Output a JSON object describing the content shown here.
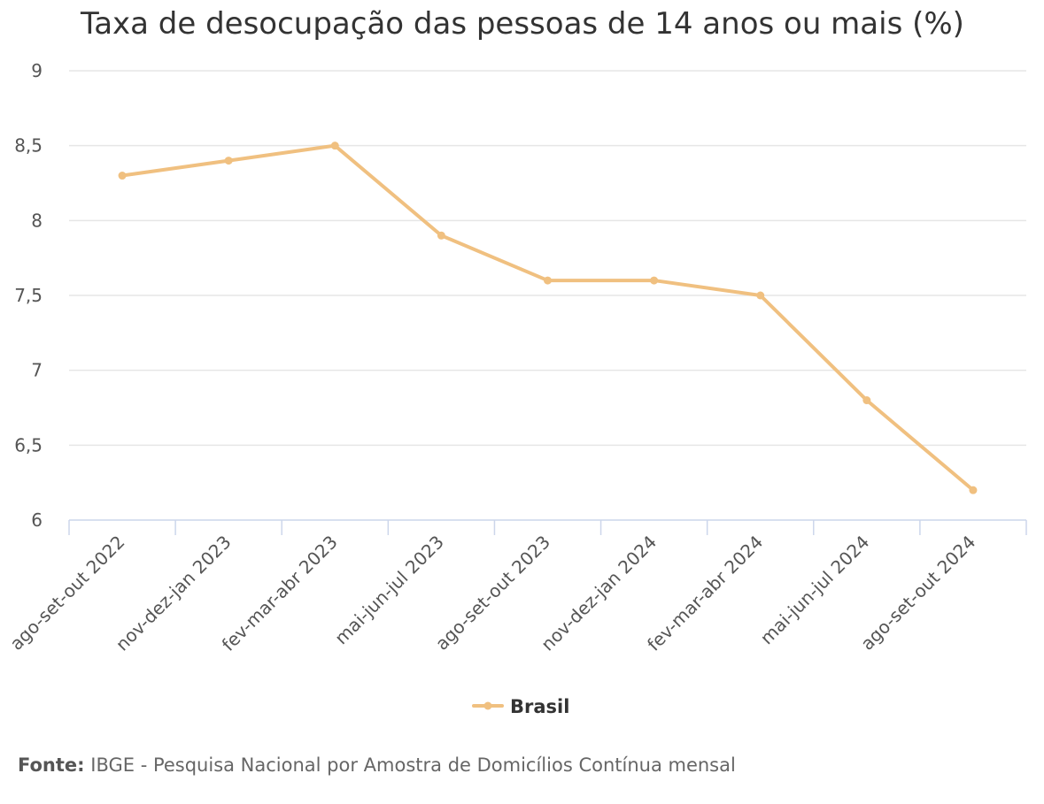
{
  "chart_data": {
    "type": "line",
    "title": "Taxa de desocupação das pessoas de 14 anos ou mais (%)",
    "xlabel": "",
    "ylabel": "",
    "categories": [
      "ago-set-out 2022",
      "nov-dez-jan 2023",
      "fev-mar-abr 2023",
      "mai-jun-jul 2023",
      "ago-set-out 2023",
      "nov-dez-jan 2024",
      "fev-mar-abr 2024",
      "mai-jun-jul 2024",
      "ago-set-out 2024"
    ],
    "series": [
      {
        "name": "Brasil",
        "color": "#f0c080",
        "values": [
          8.3,
          8.4,
          8.5,
          7.9,
          7.6,
          7.6,
          7.5,
          6.8,
          6.2
        ]
      }
    ],
    "ylim": [
      6,
      9
    ],
    "yticks": [
      6,
      6.5,
      7,
      7.5,
      8,
      8.5,
      9
    ],
    "ytick_labels": [
      "6",
      "6,5",
      "7",
      "7,5",
      "8",
      "8,5",
      "9"
    ],
    "grid": true,
    "legend_position": "bottom-center"
  },
  "source": {
    "label": "Fonte:",
    "text": "IBGE - Pesquisa Nacional por Amostra de Domicílios Contínua mensal"
  },
  "colors": {
    "gridline": "#e6e6e6",
    "axis": "#ccd6eb",
    "text": "#555555"
  }
}
